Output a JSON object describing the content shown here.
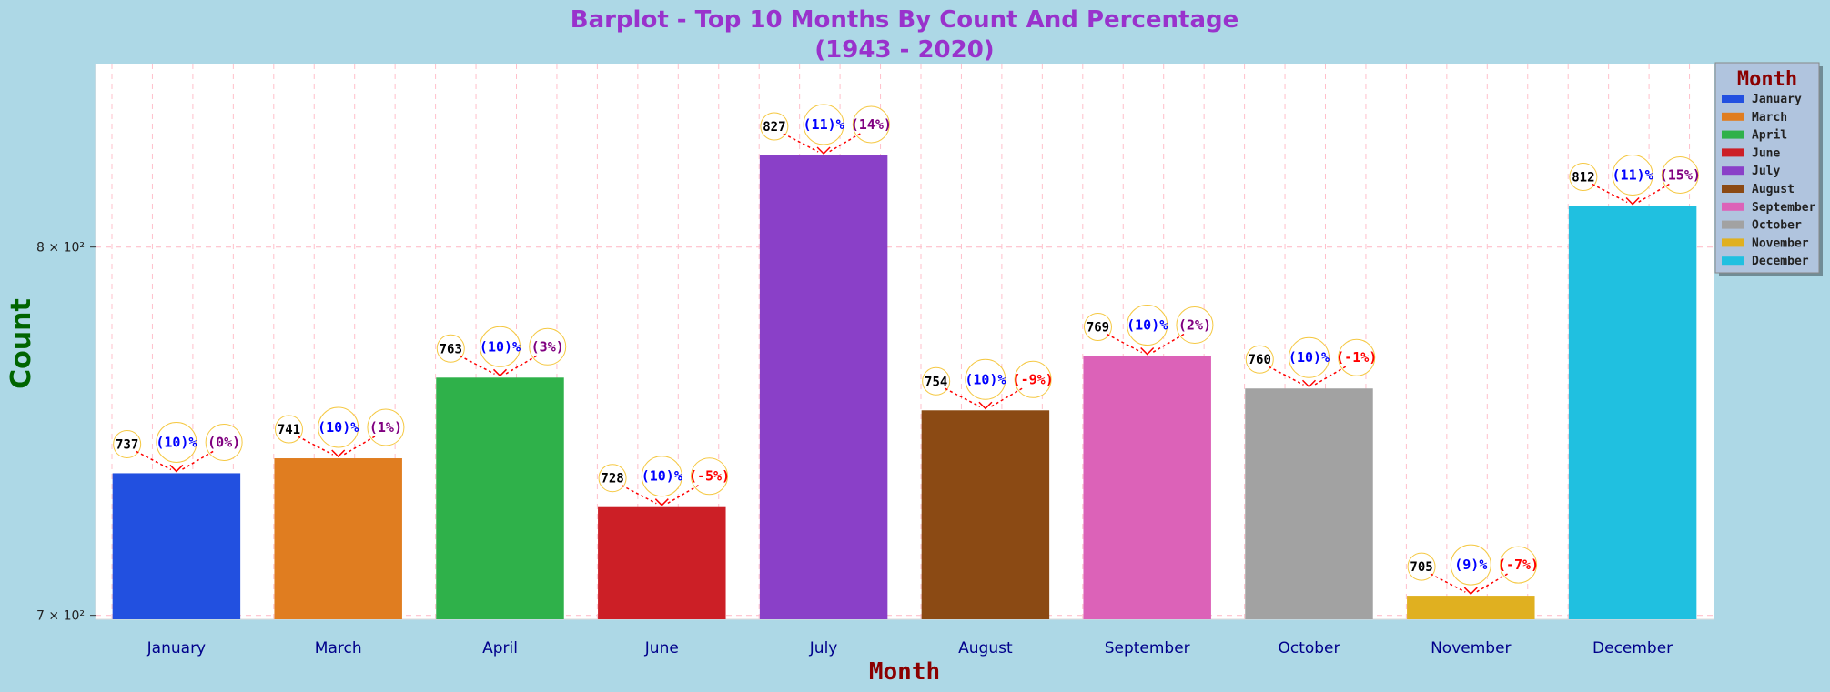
{
  "chart_data": {
    "type": "bar",
    "title": "Barplot - Top 10 Months By Count And Percentage",
    "subtitle": "(1943 - 2020)",
    "xlabel": "Month",
    "ylabel": "Count",
    "y_scale": "log",
    "ylim": [
      699,
      855
    ],
    "y_ticks": [
      {
        "value": 700,
        "label": "7 × 10²"
      },
      {
        "value": 800,
        "label": "8 × 10²"
      }
    ],
    "grid": true,
    "legend": {
      "title": "Month",
      "placement": "top-right"
    },
    "categories": [
      "January",
      "March",
      "April",
      "June",
      "July",
      "August",
      "September",
      "October",
      "November",
      "December"
    ],
    "values": [
      737,
      741,
      763,
      728,
      827,
      754,
      769,
      760,
      705,
      812
    ],
    "share_labels": [
      "(10)%",
      "(10)%",
      "(10)%",
      "(10)%",
      "(11)%",
      "(10)%",
      "(10)%",
      "(10)%",
      "(9)%",
      "(11)%"
    ],
    "change_labels": [
      "(0%)",
      "(1%)",
      "(3%)",
      "(-5%)",
      "(14%)",
      "(-9%)",
      "(2%)",
      "(-1%)",
      "(-7%)",
      "(15%)"
    ],
    "colors": [
      "#2250e0",
      "#e07d20",
      "#2fb14a",
      "#cc1f26",
      "#8a40c8",
      "#8b4a14",
      "#dc62b8",
      "#a2a2a2",
      "#e0b020",
      "#20c0e0"
    ],
    "style": {
      "title_color": "#9932cc",
      "ylabel_color": "#006400",
      "xlabel_color": "#8b0000",
      "tick_label_color": "#00008b",
      "legend_title_color": "#8b0000",
      "share_color": "#0000ff",
      "change_positive_color": "#800080",
      "change_negative_color": "#ff0000",
      "grid_color": "#ffc0cb",
      "plot_background": "#ffffff",
      "page_background": "#add8e6"
    }
  }
}
